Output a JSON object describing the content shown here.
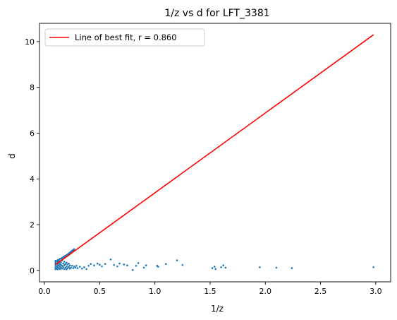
{
  "chart_data": {
    "type": "scatter",
    "title": "1/z vs d for LFT_3381",
    "xlabel": "1/z",
    "ylabel": "d",
    "xlim": [
      -0.045,
      3.135
    ],
    "ylim": [
      -0.5,
      10.8
    ],
    "x_ticks": [
      0.0,
      0.5,
      1.0,
      1.5,
      2.0,
      2.5,
      3.0
    ],
    "x_tick_labels": [
      "0.0",
      "0.5",
      "1.0",
      "1.5",
      "2.0",
      "2.5",
      "3.0"
    ],
    "y_ticks": [
      0,
      2,
      4,
      6,
      8,
      10
    ],
    "y_tick_labels": [
      "0",
      "2",
      "4",
      "6",
      "8",
      "10"
    ],
    "grid": false,
    "legend": {
      "placement": "top-left",
      "entries": [
        "Line of best fit, r = 0.860"
      ]
    },
    "series": [
      {
        "type": "scatter",
        "color": "#1f77b4",
        "points": [
          [
            0.1,
            0.05
          ],
          [
            0.1,
            0.12
          ],
          [
            0.1,
            0.2
          ],
          [
            0.1,
            0.28
          ],
          [
            0.1,
            0.35
          ],
          [
            0.1,
            0.42
          ],
          [
            0.11,
            0.08
          ],
          [
            0.11,
            0.18
          ],
          [
            0.11,
            0.3
          ],
          [
            0.11,
            0.4
          ],
          [
            0.12,
            0.05
          ],
          [
            0.12,
            0.15
          ],
          [
            0.12,
            0.25
          ],
          [
            0.12,
            0.38
          ],
          [
            0.12,
            0.45
          ],
          [
            0.13,
            0.1
          ],
          [
            0.13,
            0.22
          ],
          [
            0.13,
            0.33
          ],
          [
            0.13,
            0.42
          ],
          [
            0.14,
            0.06
          ],
          [
            0.14,
            0.17
          ],
          [
            0.14,
            0.28
          ],
          [
            0.14,
            0.4
          ],
          [
            0.15,
            0.12
          ],
          [
            0.15,
            0.24
          ],
          [
            0.15,
            0.35
          ],
          [
            0.16,
            0.08
          ],
          [
            0.16,
            0.2
          ],
          [
            0.16,
            0.44
          ],
          [
            0.17,
            0.14
          ],
          [
            0.17,
            0.3
          ],
          [
            0.18,
            0.06
          ],
          [
            0.18,
            0.22
          ],
          [
            0.18,
            0.38
          ],
          [
            0.19,
            0.12
          ],
          [
            0.19,
            0.28
          ],
          [
            0.2,
            0.05
          ],
          [
            0.2,
            0.18
          ],
          [
            0.2,
            0.34
          ],
          [
            0.21,
            0.1
          ],
          [
            0.21,
            0.26
          ],
          [
            0.22,
            0.15
          ],
          [
            0.22,
            0.3
          ],
          [
            0.23,
            0.08
          ],
          [
            0.23,
            0.22
          ],
          [
            0.24,
            0.12
          ],
          [
            0.25,
            0.2
          ],
          [
            0.26,
            0.1
          ],
          [
            0.27,
            0.18
          ],
          [
            0.28,
            0.12
          ],
          [
            0.29,
            0.2
          ],
          [
            0.3,
            0.1
          ],
          [
            0.32,
            0.16
          ],
          [
            0.34,
            0.08
          ],
          [
            0.36,
            0.14
          ],
          [
            0.38,
            0.06
          ],
          [
            0.12,
            0.42
          ],
          [
            0.13,
            0.47
          ],
          [
            0.14,
            0.5
          ],
          [
            0.15,
            0.52
          ],
          [
            0.16,
            0.55
          ],
          [
            0.17,
            0.58
          ],
          [
            0.18,
            0.61
          ],
          [
            0.19,
            0.64
          ],
          [
            0.2,
            0.67
          ],
          [
            0.21,
            0.7
          ],
          [
            0.22,
            0.74
          ],
          [
            0.23,
            0.78
          ],
          [
            0.24,
            0.82
          ],
          [
            0.25,
            0.86
          ],
          [
            0.26,
            0.9
          ],
          [
            0.27,
            0.93
          ],
          [
            0.16,
            0.5
          ],
          [
            0.18,
            0.56
          ],
          [
            0.2,
            0.62
          ],
          [
            0.22,
            0.68
          ],
          [
            0.24,
            0.76
          ],
          [
            0.26,
            0.84
          ],
          [
            0.27,
            0.88
          ],
          [
            0.4,
            0.2
          ],
          [
            0.42,
            0.28
          ],
          [
            0.45,
            0.22
          ],
          [
            0.48,
            0.3
          ],
          [
            0.5,
            0.25
          ],
          [
            0.52,
            0.18
          ],
          [
            0.55,
            0.28
          ],
          [
            0.6,
            0.48
          ],
          [
            0.63,
            0.24
          ],
          [
            0.66,
            0.18
          ],
          [
            0.68,
            0.3
          ],
          [
            0.72,
            0.26
          ],
          [
            0.75,
            0.22
          ],
          [
            0.8,
            0.02
          ],
          [
            0.83,
            0.2
          ],
          [
            0.85,
            0.32
          ],
          [
            0.9,
            0.12
          ],
          [
            0.92,
            0.22
          ],
          [
            1.02,
            0.2
          ],
          [
            1.03,
            0.16
          ],
          [
            1.1,
            0.28
          ],
          [
            1.2,
            0.44
          ],
          [
            1.25,
            0.24
          ],
          [
            1.52,
            0.1
          ],
          [
            1.54,
            0.16
          ],
          [
            1.55,
            0.06
          ],
          [
            1.6,
            0.14
          ],
          [
            1.62,
            0.22
          ],
          [
            1.64,
            0.12
          ],
          [
            1.95,
            0.14
          ],
          [
            2.1,
            0.12
          ],
          [
            2.24,
            0.1
          ],
          [
            2.98,
            0.14
          ]
        ]
      },
      {
        "type": "line",
        "name": "Line of best fit, r = 0.860",
        "color": "#ff0000",
        "x": [
          0.1,
          2.98
        ],
        "y": [
          0.25,
          10.3
        ]
      }
    ]
  }
}
